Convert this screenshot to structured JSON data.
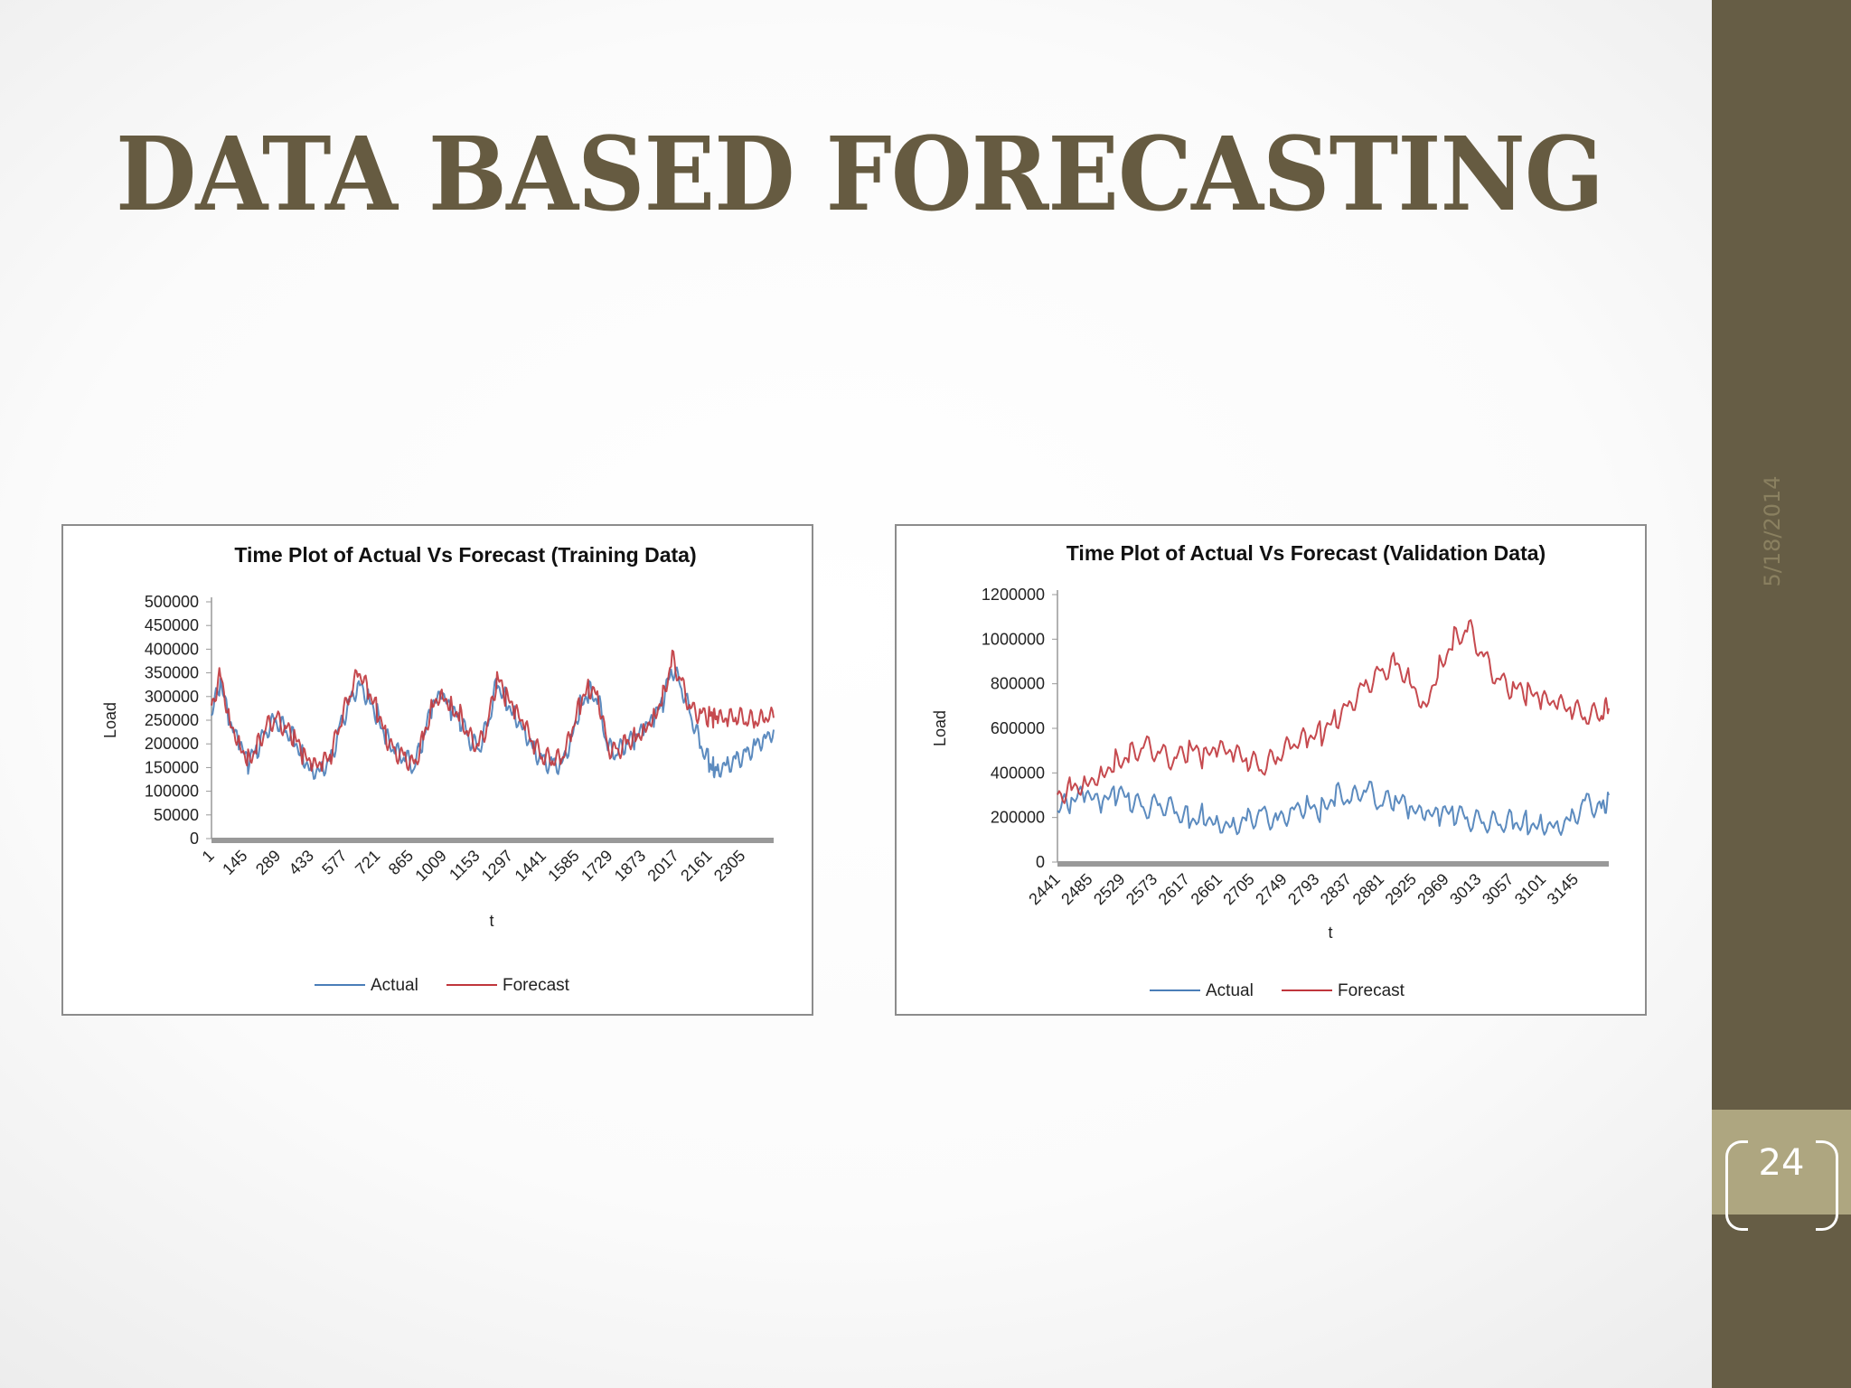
{
  "slide": {
    "title": "DATA BASED FORECASTING",
    "date": "5/18/2014",
    "page_number": "24",
    "colors": {
      "title": "#665b41",
      "sidebar": "#665d45",
      "page_box": "#aea680",
      "actual": "#4a7eb8",
      "forecast": "#c0363c"
    }
  },
  "chart_data": [
    {
      "type": "line",
      "title": "Time Plot of Actual Vs Forecast (Training Data)",
      "xlabel": "t",
      "ylabel": "Load",
      "x_ticks": [
        "1",
        "145",
        "289",
        "433",
        "577",
        "721",
        "865",
        "1009",
        "1153",
        "1297",
        "1441",
        "1585",
        "1729",
        "1873",
        "2017",
        "2161",
        "2305"
      ],
      "y_ticks": [
        "500000",
        "450000",
        "400000",
        "350000",
        "300000",
        "250000",
        "200000",
        "150000",
        "100000",
        "50000",
        "0"
      ],
      "xlim": [
        1,
        2440
      ],
      "ylim": [
        0,
        500000
      ],
      "grid": false,
      "legend": "bottom",
      "legend_entries": [
        "Actual",
        "Forecast"
      ],
      "series": [
        {
          "name": "Actual",
          "color": "#4a7eb8",
          "x": [
            1,
            40,
            80,
            120,
            160,
            200,
            240,
            280,
            320,
            360,
            400,
            440,
            480,
            520,
            560,
            600,
            640,
            680,
            720,
            760,
            800,
            840,
            880,
            920,
            960,
            1000,
            1040,
            1080,
            1120,
            1160,
            1200,
            1240,
            1280,
            1320,
            1360,
            1400,
            1440,
            1480,
            1520,
            1560,
            1600,
            1640,
            1680,
            1720,
            1760,
            1800,
            1840,
            1880,
            1920,
            1960,
            2000,
            2040,
            2080,
            2120,
            2160,
            2180,
            2200,
            2240,
            2280,
            2320,
            2360,
            2400,
            2440
          ],
          "y": [
            260000,
            330000,
            240000,
            200000,
            160000,
            190000,
            230000,
            250000,
            230000,
            210000,
            170000,
            145000,
            150000,
            170000,
            240000,
            290000,
            330000,
            300000,
            260000,
            210000,
            180000,
            170000,
            150000,
            210000,
            280000,
            300000,
            270000,
            250000,
            210000,
            190000,
            240000,
            330000,
            290000,
            260000,
            230000,
            190000,
            165000,
            160000,
            160000,
            210000,
            280000,
            310000,
            290000,
            190000,
            180000,
            200000,
            210000,
            230000,
            250000,
            290000,
            360000,
            320000,
            260000,
            200000,
            160000,
            150000,
            150000,
            160000,
            170000,
            180000,
            200000,
            215000,
            230000
          ]
        },
        {
          "name": "Forecast",
          "color": "#c0363c",
          "x": [
            1,
            40,
            80,
            120,
            160,
            200,
            240,
            280,
            320,
            360,
            400,
            440,
            480,
            520,
            560,
            600,
            640,
            680,
            720,
            760,
            800,
            840,
            880,
            920,
            960,
            1000,
            1040,
            1080,
            1120,
            1160,
            1200,
            1240,
            1280,
            1320,
            1360,
            1400,
            1440,
            1480,
            1520,
            1560,
            1600,
            1640,
            1680,
            1720,
            1760,
            1800,
            1840,
            1880,
            1920,
            1960,
            2000,
            2040,
            2080,
            2120,
            2160,
            2180,
            2200,
            2240,
            2280,
            2320,
            2360,
            2400,
            2440
          ],
          "y": [
            280000,
            350000,
            250000,
            205000,
            165000,
            195000,
            235000,
            255000,
            235000,
            215000,
            175000,
            150000,
            155000,
            175000,
            245000,
            300000,
            350000,
            310000,
            270000,
            215000,
            185000,
            175000,
            155000,
            215000,
            285000,
            310000,
            280000,
            260000,
            215000,
            195000,
            245000,
            340000,
            300000,
            265000,
            235000,
            195000,
            170000,
            165000,
            165000,
            215000,
            285000,
            320000,
            300000,
            195000,
            185000,
            205000,
            215000,
            235000,
            260000,
            300000,
            380000,
            330000,
            275000,
            265000,
            260000,
            255000,
            250000,
            250000,
            255000,
            250000,
            245000,
            250000,
            255000
          ]
        }
      ]
    },
    {
      "type": "line",
      "title": "Time Plot of Actual Vs Forecast (Validation Data)",
      "xlabel": "t",
      "ylabel": "Load",
      "x_ticks": [
        "2441",
        "2485",
        "2529",
        "2573",
        "2617",
        "2661",
        "2705",
        "2749",
        "2793",
        "2837",
        "2881",
        "2925",
        "2969",
        "3013",
        "3057",
        "3101",
        "3145"
      ],
      "y_ticks": [
        "1200000",
        "1000000",
        "800000",
        "600000",
        "400000",
        "200000",
        "0"
      ],
      "xlim": [
        2441,
        3190
      ],
      "ylim": [
        0,
        1200000
      ],
      "grid": false,
      "legend": "bottom",
      "legend_entries": [
        "Actual",
        "Forecast"
      ],
      "series": [
        {
          "name": "Actual",
          "color": "#4a7eb8",
          "x": [
            2441,
            2460,
            2480,
            2500,
            2520,
            2540,
            2560,
            2580,
            2600,
            2620,
            2640,
            2660,
            2680,
            2700,
            2720,
            2740,
            2760,
            2780,
            2800,
            2820,
            2840,
            2860,
            2880,
            2900,
            2920,
            2940,
            2960,
            2980,
            3000,
            3020,
            3040,
            3060,
            3080,
            3100,
            3120,
            3140,
            3160,
            3180,
            3190
          ],
          "y": [
            230000,
            270000,
            300000,
            250000,
            310000,
            280000,
            240000,
            260000,
            230000,
            190000,
            210000,
            180000,
            170000,
            200000,
            220000,
            190000,
            240000,
            260000,
            230000,
            300000,
            270000,
            330000,
            260000,
            280000,
            230000,
            200000,
            210000,
            220000,
            190000,
            180000,
            170000,
            180000,
            170000,
            175000,
            170000,
            200000,
            280000,
            240000,
            300000
          ]
        },
        {
          "name": "Forecast",
          "color": "#c0363c",
          "x": [
            2441,
            2460,
            2480,
            2500,
            2520,
            2540,
            2560,
            2580,
            2600,
            2620,
            2640,
            2660,
            2680,
            2700,
            2720,
            2740,
            2760,
            2780,
            2800,
            2820,
            2840,
            2860,
            2880,
            2900,
            2920,
            2940,
            2960,
            2980,
            3000,
            3020,
            3040,
            3060,
            3080,
            3100,
            3120,
            3140,
            3160,
            3180,
            3190
          ],
          "y": [
            300000,
            340000,
            360000,
            400000,
            450000,
            480000,
            520000,
            490000,
            460000,
            510000,
            470000,
            500000,
            480000,
            450000,
            420000,
            470000,
            520000,
            550000,
            580000,
            650000,
            720000,
            800000,
            850000,
            900000,
            820000,
            700000,
            880000,
            1000000,
            1050000,
            920000,
            820000,
            780000,
            760000,
            720000,
            700000,
            680000,
            650000,
            660000,
            690000
          ]
        }
      ]
    }
  ]
}
